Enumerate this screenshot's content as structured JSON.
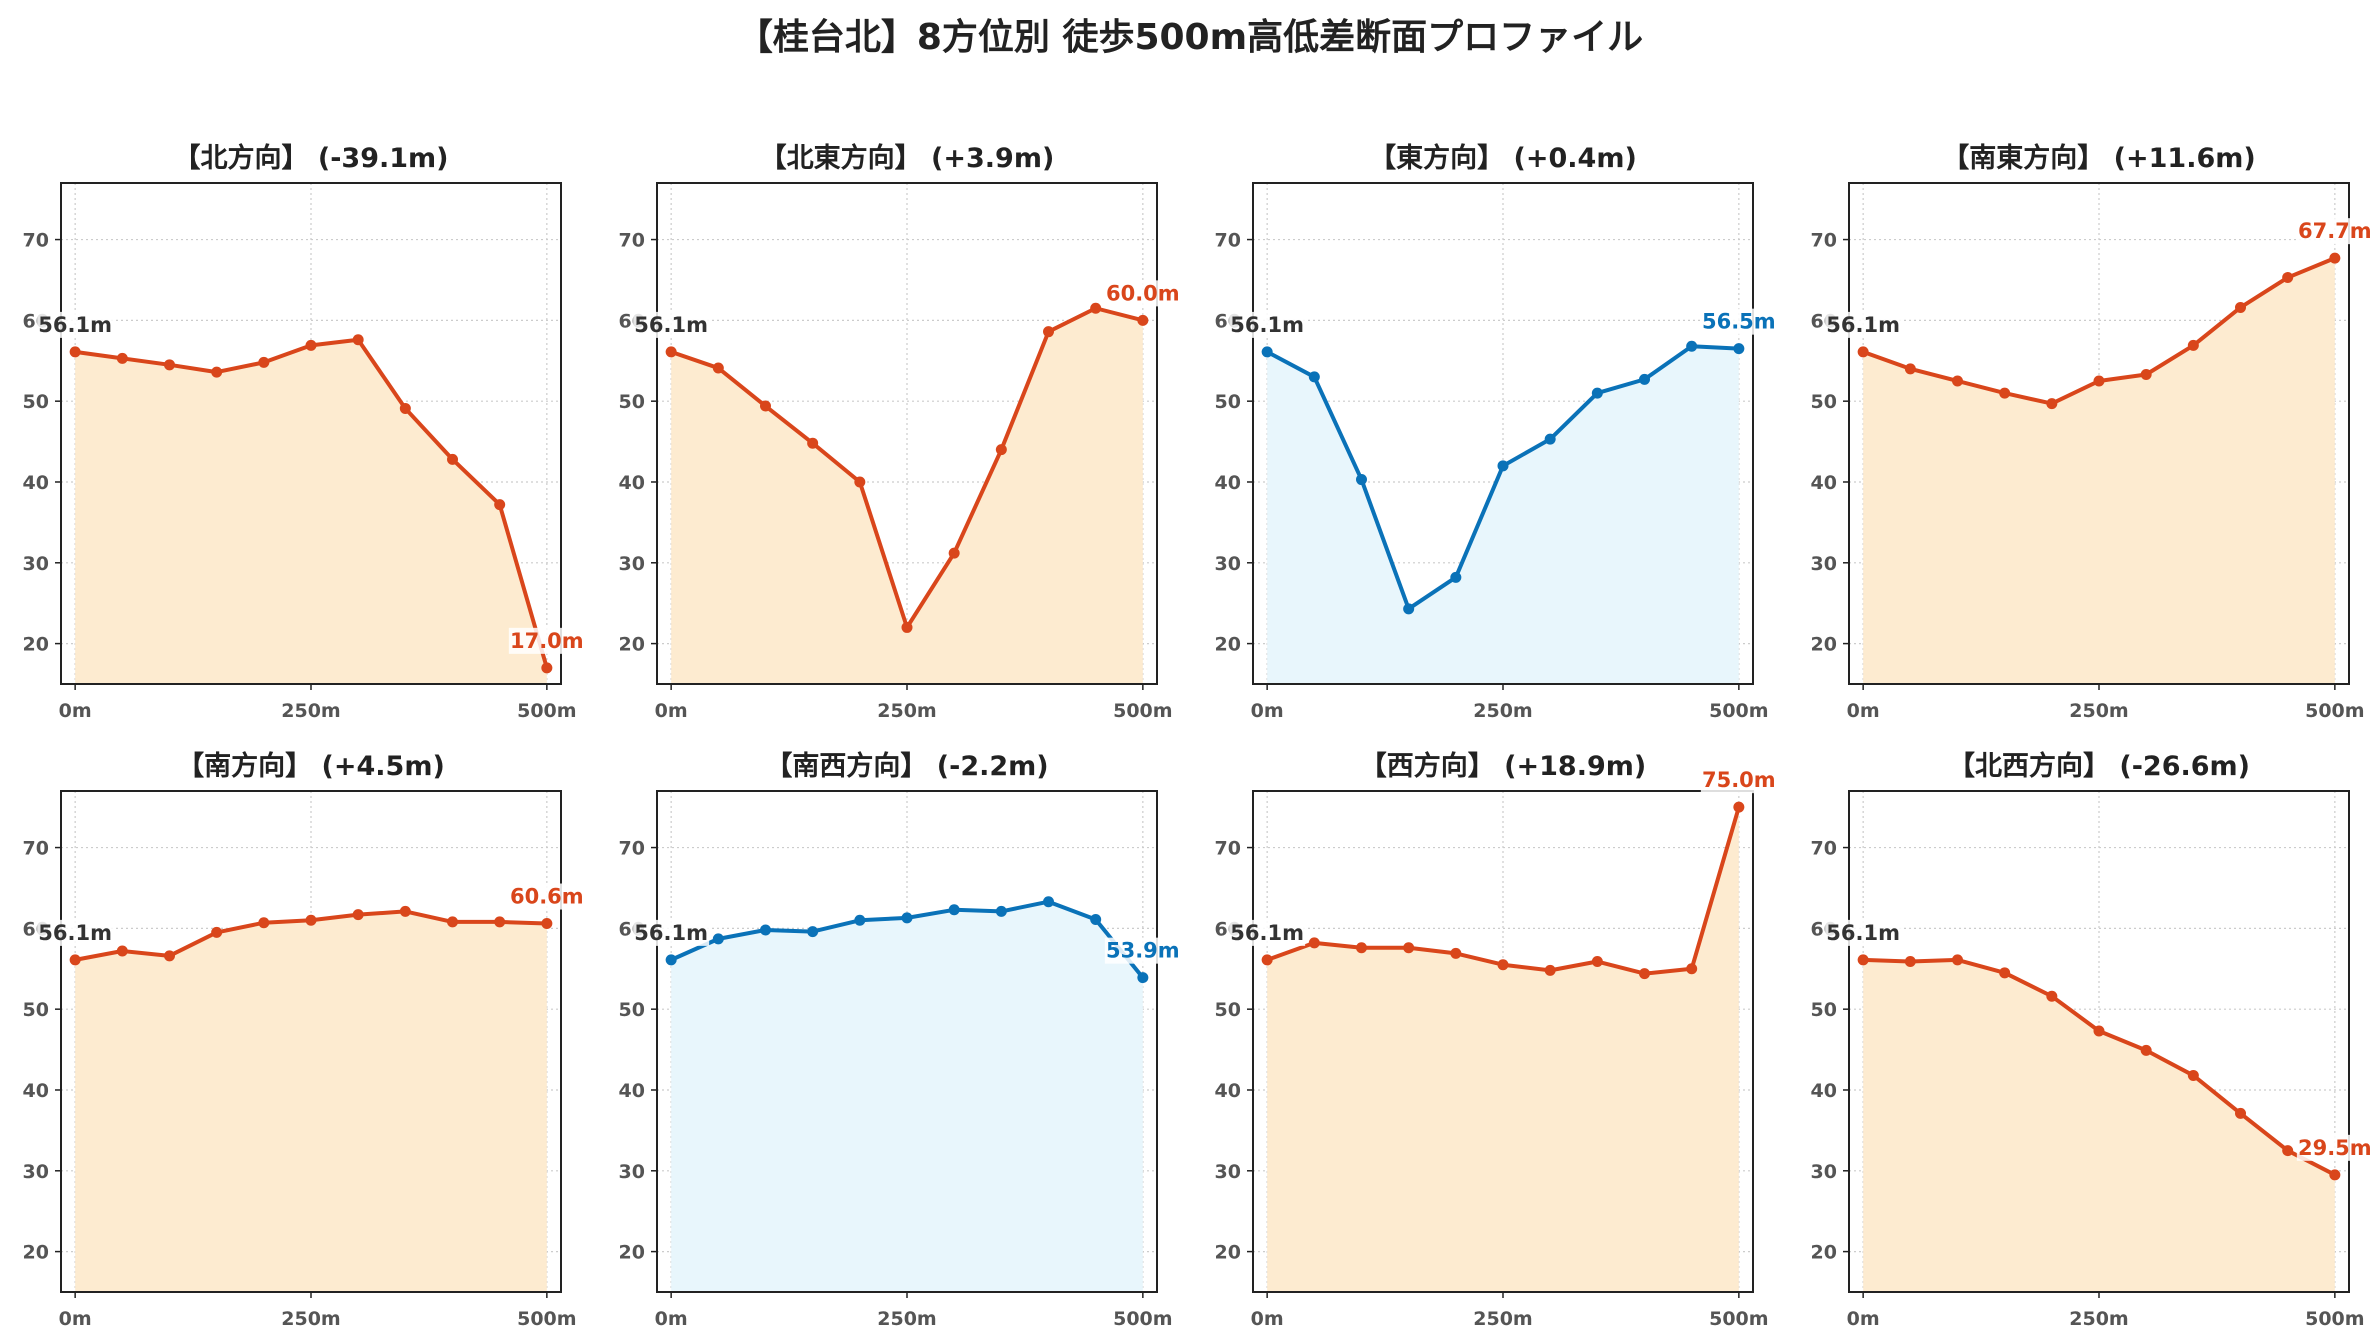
{
  "title": "【桂台北】8方位別 徒歩500m高低差断面プロファイル",
  "chart_data": [
    {
      "type": "area",
      "title": "【北方向】 (-39.1m)",
      "x": [
        0,
        50,
        100,
        150,
        200,
        250,
        300,
        350,
        400,
        450,
        500
      ],
      "y": [
        56.1,
        55.3,
        54.5,
        53.6,
        54.8,
        56.9,
        57.6,
        49.1,
        42.8,
        37.2,
        17.0
      ],
      "start_label": "56.1m",
      "end_label": "17.0m",
      "line_color": "#d9461b",
      "fill_color": "#fdebd0",
      "xticks": [
        "0m",
        "250m",
        "500m"
      ],
      "yticks": [
        20,
        30,
        40,
        50,
        60,
        70
      ],
      "ylim": [
        15,
        77
      ],
      "xlim": [
        -15,
        515
      ],
      "grid": true
    },
    {
      "type": "area",
      "title": "【北東方向】 (+3.9m)",
      "x": [
        0,
        50,
        100,
        150,
        200,
        250,
        300,
        350,
        400,
        450,
        500
      ],
      "y": [
        56.1,
        54.1,
        49.4,
        44.8,
        40.0,
        22.0,
        31.2,
        44.0,
        58.6,
        61.5,
        60.0
      ],
      "start_label": "56.1m",
      "end_label": "60.0m",
      "line_color": "#d9461b",
      "fill_color": "#fdebd0",
      "xticks": [
        "0m",
        "250m",
        "500m"
      ],
      "yticks": [
        20,
        30,
        40,
        50,
        60,
        70
      ],
      "ylim": [
        15,
        77
      ],
      "xlim": [
        -15,
        515
      ],
      "grid": true
    },
    {
      "type": "area",
      "title": "【東方向】 (+0.4m)",
      "x": [
        0,
        50,
        100,
        150,
        200,
        250,
        300,
        350,
        400,
        450,
        500
      ],
      "y": [
        56.1,
        53.0,
        40.3,
        24.3,
        28.2,
        42.0,
        45.3,
        51.0,
        52.7,
        56.8,
        56.5
      ],
      "start_label": "56.1m",
      "end_label": "56.5m",
      "line_color": "#0a72b8",
      "fill_color": "#e8f6fc",
      "xticks": [
        "0m",
        "250m",
        "500m"
      ],
      "yticks": [
        20,
        30,
        40,
        50,
        60,
        70
      ],
      "ylim": [
        15,
        77
      ],
      "xlim": [
        -15,
        515
      ],
      "grid": true
    },
    {
      "type": "area",
      "title": "【南東方向】 (+11.6m)",
      "x": [
        0,
        50,
        100,
        150,
        200,
        250,
        300,
        350,
        400,
        450,
        500
      ],
      "y": [
        56.1,
        54.0,
        52.5,
        51.0,
        49.7,
        52.5,
        53.3,
        56.9,
        61.6,
        65.3,
        67.7
      ],
      "start_label": "56.1m",
      "end_label": "67.7m",
      "line_color": "#d9461b",
      "fill_color": "#fdebd0",
      "xticks": [
        "0m",
        "250m",
        "500m"
      ],
      "yticks": [
        20,
        30,
        40,
        50,
        60,
        70
      ],
      "ylim": [
        15,
        77
      ],
      "xlim": [
        -15,
        515
      ],
      "grid": true
    },
    {
      "type": "area",
      "title": "【南方向】 (+4.5m)",
      "x": [
        0,
        50,
        100,
        150,
        200,
        250,
        300,
        350,
        400,
        450,
        500
      ],
      "y": [
        56.1,
        57.2,
        56.6,
        59.5,
        60.7,
        61.0,
        61.7,
        62.1,
        60.8,
        60.8,
        60.6
      ],
      "start_label": "56.1m",
      "end_label": "60.6m",
      "line_color": "#d9461b",
      "fill_color": "#fdebd0",
      "xticks": [
        "0m",
        "250m",
        "500m"
      ],
      "yticks": [
        20,
        30,
        40,
        50,
        60,
        70
      ],
      "ylim": [
        15,
        77
      ],
      "xlim": [
        -15,
        515
      ],
      "grid": true
    },
    {
      "type": "area",
      "title": "【南西方向】 (-2.2m)",
      "x": [
        0,
        50,
        100,
        150,
        200,
        250,
        300,
        350,
        400,
        450,
        500
      ],
      "y": [
        56.1,
        58.7,
        59.8,
        59.6,
        61.0,
        61.3,
        62.3,
        62.1,
        63.3,
        61.1,
        53.9
      ],
      "start_label": "56.1m",
      "end_label": "53.9m",
      "line_color": "#0a72b8",
      "fill_color": "#e8f6fc",
      "xticks": [
        "0m",
        "250m",
        "500m"
      ],
      "yticks": [
        20,
        30,
        40,
        50,
        60,
        70
      ],
      "ylim": [
        15,
        77
      ],
      "xlim": [
        -15,
        515
      ],
      "grid": true
    },
    {
      "type": "area",
      "title": "【西方向】 (+18.9m)",
      "x": [
        0,
        50,
        100,
        150,
        200,
        250,
        300,
        350,
        400,
        450,
        500
      ],
      "y": [
        56.1,
        58.2,
        57.6,
        57.6,
        56.9,
        55.5,
        54.8,
        55.9,
        54.4,
        55.0,
        75.0
      ],
      "start_label": "56.1m",
      "end_label": "75.0m",
      "line_color": "#d9461b",
      "fill_color": "#fdebd0",
      "xticks": [
        "0m",
        "250m",
        "500m"
      ],
      "yticks": [
        20,
        30,
        40,
        50,
        60,
        70
      ],
      "ylim": [
        15,
        77
      ],
      "xlim": [
        -15,
        515
      ],
      "grid": true
    },
    {
      "type": "area",
      "title": "【北西方向】 (-26.6m)",
      "x": [
        0,
        50,
        100,
        150,
        200,
        250,
        300,
        350,
        400,
        450,
        500
      ],
      "y": [
        56.1,
        55.9,
        56.1,
        54.5,
        51.6,
        47.3,
        44.9,
        41.8,
        37.1,
        32.5,
        29.5
      ],
      "start_label": "56.1m",
      "end_label": "29.5m",
      "line_color": "#d9461b",
      "fill_color": "#fdebd0",
      "xticks": [
        "0m",
        "250m",
        "500m"
      ],
      "yticks": [
        20,
        30,
        40,
        50,
        60,
        70
      ],
      "ylim": [
        15,
        77
      ],
      "xlim": [
        -15,
        515
      ],
      "grid": true
    }
  ]
}
